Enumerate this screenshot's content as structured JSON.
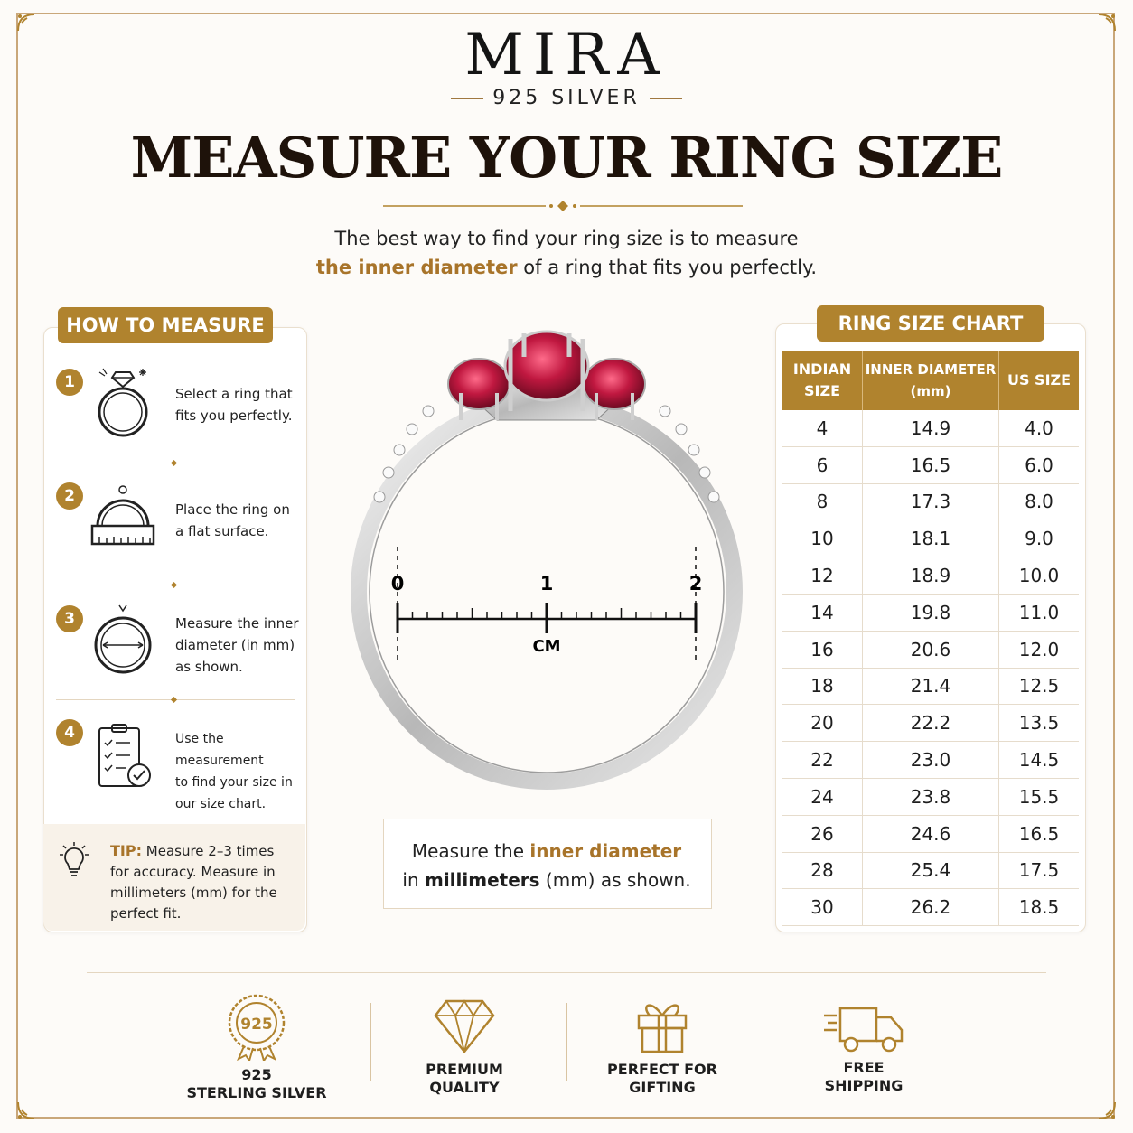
{
  "brand": {
    "name": "MIRA",
    "sub": "925 SILVER"
  },
  "title": "MEASURE YOUR RING SIZE",
  "intro": {
    "line1": "The best way to find your ring size is to measure",
    "highlight": "the inner diameter",
    "line2_rest": " of a ring that fits you perfectly."
  },
  "how_to": {
    "title": "HOW TO MEASURE",
    "steps": [
      {
        "num": "1",
        "icon": "diamond-ring-icon",
        "lines": [
          "Select a ring that",
          "fits you perfectly."
        ]
      },
      {
        "num": "2",
        "icon": "ring-on-surface-icon",
        "lines": [
          "Place the ring on",
          "a flat surface."
        ]
      },
      {
        "num": "3",
        "icon": "ring-diameter-icon",
        "lines": [
          "Measure the inner",
          "diameter (in mm)",
          "as shown."
        ]
      },
      {
        "num": "4",
        "icon": "checklist-icon",
        "lines": [
          "Use the measurement",
          "to find your size in",
          "our size chart."
        ]
      }
    ],
    "tip": {
      "label": "TIP:",
      "text": " Measure 2–3 times for accuracy. Measure in millimeters (mm) for the perfect fit."
    }
  },
  "ruler": {
    "labels": [
      "0",
      "1",
      "2"
    ],
    "unit": "CM"
  },
  "caption": {
    "part1": "Measure the ",
    "highlight": "inner diameter",
    "part2": "in ",
    "bold": "millimeters",
    "part3": " (mm) as shown."
  },
  "size_chart": {
    "title": "RING SIZE CHART",
    "headers": [
      [
        "INDIAN",
        "SIZE"
      ],
      [
        "INNER DIAMETER",
        "(mm)"
      ],
      [
        "US SIZE"
      ]
    ],
    "rows": [
      [
        "4",
        "14.9",
        "4.0"
      ],
      [
        "6",
        "16.5",
        "6.0"
      ],
      [
        "8",
        "17.3",
        "8.0"
      ],
      [
        "10",
        "18.1",
        "9.0"
      ],
      [
        "12",
        "18.9",
        "10.0"
      ],
      [
        "14",
        "19.8",
        "11.0"
      ],
      [
        "16",
        "20.6",
        "12.0"
      ],
      [
        "18",
        "21.4",
        "12.5"
      ],
      [
        "20",
        "22.2",
        "13.5"
      ],
      [
        "22",
        "23.0",
        "14.5"
      ],
      [
        "24",
        "23.8",
        "15.5"
      ],
      [
        "26",
        "24.6",
        "16.5"
      ],
      [
        "28",
        "25.4",
        "17.5"
      ],
      [
        "30",
        "26.2",
        "18.5"
      ]
    ]
  },
  "features": [
    {
      "icon": "925-badge-icon",
      "badge": "925",
      "lines": [
        "925",
        "STERLING SILVER"
      ]
    },
    {
      "icon": "diamond-icon",
      "lines": [
        "PREMIUM",
        "QUALITY"
      ]
    },
    {
      "icon": "gift-icon",
      "lines": [
        "PERFECT FOR",
        "GIFTING"
      ]
    },
    {
      "icon": "truck-icon",
      "lines": [
        "FREE",
        "SHIPPING"
      ]
    }
  ],
  "colors": {
    "accent": "#b0832e",
    "ruby": "#b0183c",
    "frame": "#c9a77a"
  }
}
